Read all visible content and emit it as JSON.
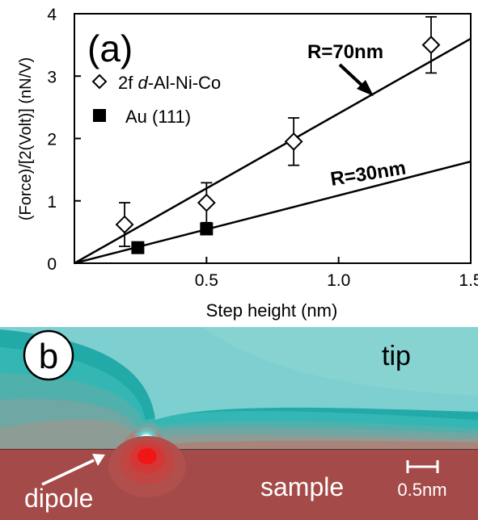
{
  "chart_data": {
    "type": "scatter",
    "panel_label": "(a)",
    "xlabel": "Step height (nm)",
    "ylabel": "(Force)/[2(Volt)] (nN/V)",
    "xlim": [
      0,
      1.5
    ],
    "ylim": [
      0,
      4
    ],
    "xticks": [
      {
        "value": 0.5,
        "label": "0.5"
      },
      {
        "value": 1.0,
        "label": "1.0"
      },
      {
        "value": 1.5,
        "label": "1.5"
      }
    ],
    "yticks": [
      {
        "value": 0,
        "label": "0"
      },
      {
        "value": 1,
        "label": "1"
      },
      {
        "value": 2,
        "label": "2"
      },
      {
        "value": 3,
        "label": "3"
      },
      {
        "value": 4,
        "label": "4"
      }
    ],
    "grid": false,
    "legend_position": "upper-left",
    "series": [
      {
        "name": "2f d-Al-Ni-Co",
        "name_prefix": "2f ",
        "name_italic": "d",
        "name_suffix": "-Al-Ni-Co",
        "marker": "diamond-open",
        "points": [
          {
            "x": 0.19,
            "y": 0.62,
            "err": 0.35
          },
          {
            "x": 0.5,
            "y": 0.97,
            "err": 0.32
          },
          {
            "x": 0.83,
            "y": 1.95,
            "err": 0.38
          },
          {
            "x": 1.35,
            "y": 3.5,
            "err": 0.45
          }
        ]
      },
      {
        "name": "Au (111)",
        "marker": "square-filled",
        "points": [
          {
            "x": 0.24,
            "y": 0.25
          },
          {
            "x": 0.5,
            "y": 0.55
          }
        ]
      }
    ],
    "fit_lines": [
      {
        "label": "R=70nm",
        "x": [
          0,
          1.5
        ],
        "y": [
          0,
          3.6
        ]
      },
      {
        "label": "R=30nm",
        "x": [
          0,
          1.5
        ],
        "y": [
          0,
          1.63
        ]
      }
    ]
  },
  "panel_b": {
    "label": "b",
    "tip_label": "tip",
    "sample_label": "sample",
    "dipole_label": "dipole",
    "scale_bar_label": "0.5nm",
    "colors": {
      "tip_fill": "#7ecfcf",
      "tip_dark": "#1fa8a6",
      "vacuum": "#a98078",
      "sample": "#a44a48",
      "dipole": "#e01818"
    }
  }
}
